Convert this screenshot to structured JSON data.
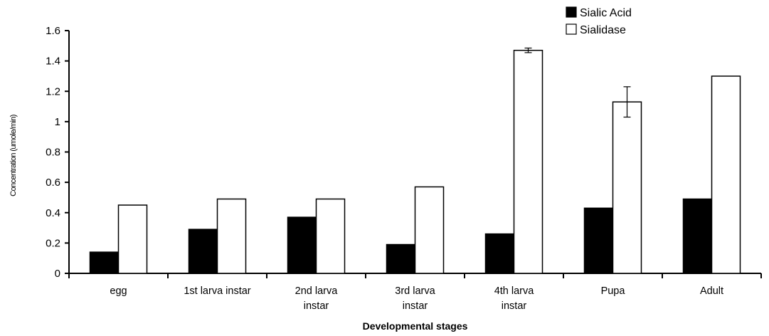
{
  "chart_data": {
    "type": "bar",
    "xlabel": "Developmental stages",
    "ylabel": "Concentration (umole/min)",
    "ylim": [
      0,
      1.6
    ],
    "ytick_step": 0.2,
    "ytick_labels": [
      "0",
      "0.2",
      "0.4",
      "0.6",
      "0.8",
      "1",
      "1.2",
      "1.4",
      "1.6"
    ],
    "categories": [
      [
        "egg"
      ],
      [
        "1st larva instar"
      ],
      [
        "2nd larva",
        "instar"
      ],
      [
        "3rd larva",
        "instar"
      ],
      [
        "4th larva",
        "instar"
      ],
      [
        "Pupa"
      ],
      [
        "Adult"
      ]
    ],
    "series": [
      {
        "name": "Sialic Acid",
        "color": "#000000",
        "values": [
          0.14,
          0.29,
          0.37,
          0.19,
          0.26,
          0.43,
          0.49
        ],
        "errors": [
          0,
          0,
          0,
          0,
          0,
          0,
          0
        ]
      },
      {
        "name": "Sialidase",
        "color": "#ffffff",
        "values": [
          0.45,
          0.49,
          0.49,
          0.57,
          1.47,
          1.13,
          1.3
        ],
        "errors": [
          0,
          0,
          0,
          0,
          0.015,
          0.1,
          0
        ]
      }
    ],
    "legend_position": "top-right",
    "grid": false
  }
}
